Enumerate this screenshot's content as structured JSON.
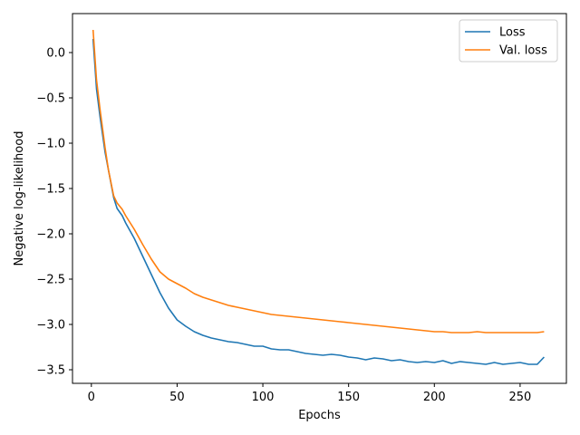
{
  "chart_data": {
    "type": "line",
    "title": "",
    "xlabel": "Epochs",
    "ylabel": "Negative log-likelihood",
    "xlim": [
      -11,
      277
    ],
    "ylim": [
      -3.65,
      0.43
    ],
    "xticks": [
      0,
      50,
      100,
      150,
      200,
      250
    ],
    "xtick_labels": [
      "0",
      "50",
      "100",
      "150",
      "200",
      "250"
    ],
    "yticks": [
      0.0,
      -0.5,
      -1.0,
      -1.5,
      -2.0,
      -2.5,
      -3.0,
      -3.5
    ],
    "ytick_labels": [
      "0.0",
      "−0.5",
      "−1.0",
      "−1.5",
      "−2.0",
      "−2.5",
      "−3.0",
      "−3.5"
    ],
    "grid": false,
    "legend_position": "top-right",
    "series": [
      {
        "name": "Loss",
        "color": "#1f77b4",
        "x": [
          1,
          3,
          5,
          8,
          10,
          13,
          15,
          18,
          20,
          25,
          30,
          35,
          40,
          45,
          50,
          55,
          60,
          65,
          70,
          75,
          80,
          85,
          90,
          95,
          100,
          105,
          110,
          115,
          120,
          125,
          130,
          135,
          140,
          145,
          150,
          155,
          160,
          165,
          170,
          175,
          180,
          185,
          190,
          195,
          200,
          205,
          210,
          215,
          220,
          225,
          230,
          235,
          240,
          245,
          250,
          255,
          260,
          264
        ],
        "y": [
          0.15,
          -0.4,
          -0.7,
          -1.1,
          -1.3,
          -1.6,
          -1.72,
          -1.8,
          -1.88,
          -2.05,
          -2.25,
          -2.45,
          -2.65,
          -2.82,
          -2.95,
          -3.02,
          -3.08,
          -3.12,
          -3.15,
          -3.17,
          -3.19,
          -3.2,
          -3.22,
          -3.24,
          -3.24,
          -3.27,
          -3.28,
          -3.28,
          -3.3,
          -3.32,
          -3.33,
          -3.34,
          -3.33,
          -3.34,
          -3.36,
          -3.37,
          -3.39,
          -3.37,
          -3.38,
          -3.4,
          -3.39,
          -3.41,
          -3.42,
          -3.41,
          -3.42,
          -3.4,
          -3.43,
          -3.41,
          -3.42,
          -3.43,
          -3.44,
          -3.42,
          -3.44,
          -3.43,
          -3.42,
          -3.44,
          -3.44,
          -3.36
        ]
      },
      {
        "name": "Val. loss",
        "color": "#ff7f0e",
        "x": [
          1,
          3,
          5,
          8,
          10,
          13,
          15,
          18,
          20,
          25,
          30,
          35,
          40,
          45,
          50,
          55,
          60,
          65,
          70,
          75,
          80,
          85,
          90,
          95,
          100,
          105,
          110,
          115,
          120,
          125,
          130,
          135,
          140,
          145,
          150,
          155,
          160,
          165,
          170,
          175,
          180,
          185,
          190,
          195,
          200,
          205,
          210,
          215,
          220,
          225,
          230,
          235,
          240,
          245,
          250,
          255,
          260,
          264
        ],
        "y": [
          0.25,
          -0.3,
          -0.62,
          -1.05,
          -1.3,
          -1.58,
          -1.66,
          -1.73,
          -1.8,
          -1.95,
          -2.12,
          -2.28,
          -2.42,
          -2.5,
          -2.55,
          -2.6,
          -2.66,
          -2.7,
          -2.73,
          -2.76,
          -2.79,
          -2.81,
          -2.83,
          -2.85,
          -2.87,
          -2.89,
          -2.9,
          -2.91,
          -2.92,
          -2.93,
          -2.94,
          -2.95,
          -2.96,
          -2.97,
          -2.98,
          -2.99,
          -3.0,
          -3.01,
          -3.02,
          -3.03,
          -3.04,
          -3.05,
          -3.06,
          -3.07,
          -3.08,
          -3.08,
          -3.09,
          -3.09,
          -3.09,
          -3.08,
          -3.09,
          -3.09,
          -3.09,
          -3.09,
          -3.09,
          -3.09,
          -3.09,
          -3.08
        ]
      }
    ]
  }
}
